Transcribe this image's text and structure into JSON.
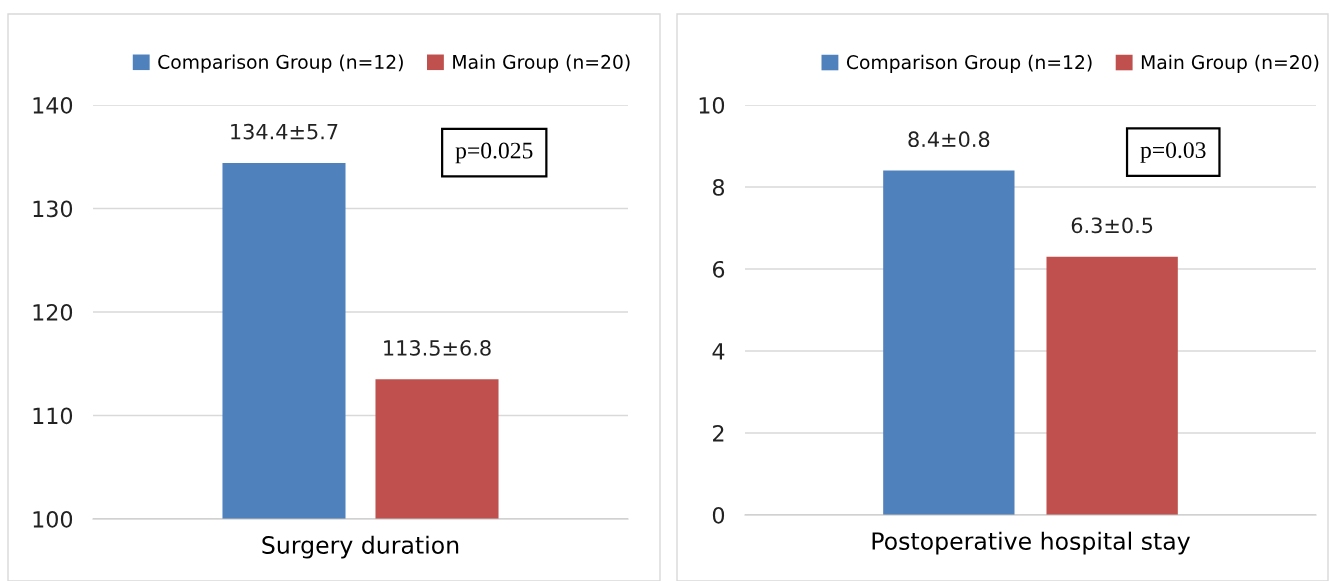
{
  "chart_data": [
    {
      "type": "bar",
      "categories": [
        "Surgery duration"
      ],
      "ylim": [
        100,
        140
      ],
      "yticks": [
        100,
        110,
        120,
        130,
        140
      ],
      "grid": "y",
      "legend": "top right",
      "annotations": [
        "p=0.025"
      ],
      "series": [
        {
          "name": "Comparison Group (n=12)",
          "color": "#4f81bd",
          "values": [
            134.4
          ],
          "value_labels": [
            "134.4±5.7"
          ]
        },
        {
          "name": "Main Group (n=20)",
          "color": "#c0504d",
          "values": [
            113.5
          ],
          "value_labels": [
            "113.5±6.8"
          ]
        }
      ]
    },
    {
      "type": "bar",
      "categories": [
        "Postoperative hospital stay"
      ],
      "ylim": [
        0,
        10
      ],
      "yticks": [
        0,
        2,
        4,
        6,
        8,
        10
      ],
      "grid": "y",
      "legend": "top right",
      "annotations": [
        "p=0.03"
      ],
      "series": [
        {
          "name": "Comparison Group (n=12)",
          "color": "#4f81bd",
          "values": [
            8.4
          ],
          "value_labels": [
            "8.4±0.8"
          ]
        },
        {
          "name": "Main Group (n=20)",
          "color": "#c0504d",
          "values": [
            6.3
          ],
          "value_labels": [
            "6.3±0.5"
          ]
        }
      ]
    }
  ]
}
